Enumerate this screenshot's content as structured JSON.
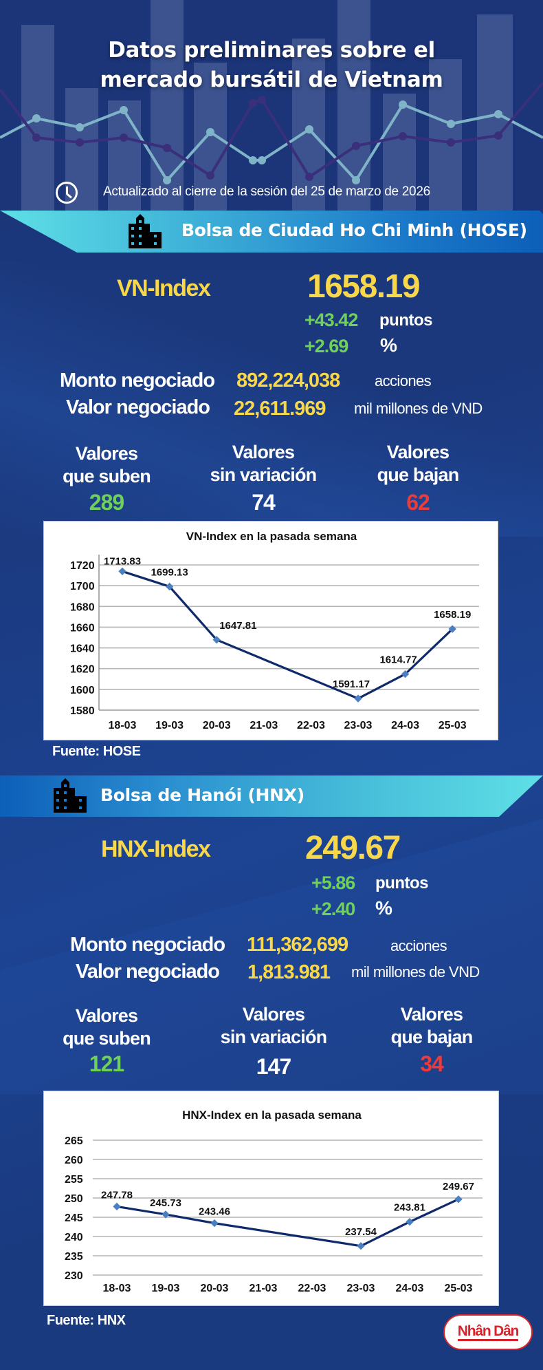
{
  "header": {
    "title_line1": "Datos preliminares sobre el",
    "title_line2": "mercado bursátil de Vietnam",
    "updated": "Actualizado al cierre de la sesión del 25 de marzo de 2026",
    "icon": "clock-icon"
  },
  "colors": {
    "background": "#1a3a7f",
    "index_yellow": "#f8d74a",
    "up_green": "#6fd05a",
    "down_red": "#ef3a3a",
    "banner_cyan": "#5ee0e6",
    "banner_blue": "#0d5fb8",
    "chart_line": "#0f2a6b",
    "chart_marker": "#4a7fc1"
  },
  "hose": {
    "banner_title": "Bolsa de Ciudad Ho Chi Minh (HOSE)",
    "banner_icon": "building-icon",
    "index_name": "VN-Index",
    "index_value": "1658.19",
    "change_points": "+43.42",
    "points_unit": "puntos",
    "change_percent": "+2.69",
    "percent_unit": "%",
    "volume_label": "Monto negociado",
    "volume_value": "892,224,038",
    "volume_unit": "acciones",
    "value_label": "Valor negociado",
    "value_value": "22,611.969",
    "value_unit": "mil millones de VND",
    "advancers_label_1": "Valores",
    "advancers_label_2": "que suben",
    "advancers": "289",
    "unchanged_label_1": "Valores",
    "unchanged_label_2": "sin variación",
    "unchanged": "74",
    "decliners_label_1": "Valores",
    "decliners_label_2": "que bajan",
    "decliners": "62",
    "source": "Fuente: HOSE"
  },
  "hnx": {
    "banner_title": "Bolsa de Hanói (HNX)",
    "banner_icon": "building-icon",
    "index_name": "HNX-Index",
    "index_value": "249.67",
    "change_points": "+5.86",
    "points_unit": "puntos",
    "change_percent": "+2.40",
    "percent_unit": "%",
    "volume_label": "Monto negociado",
    "volume_value": "111,362,699",
    "volume_unit": "acciones",
    "value_label": "Valor negociado",
    "value_value": "1,813.981",
    "value_unit": "mil millones de VND",
    "advancers_label_1": "Valores",
    "advancers_label_2": "que suben",
    "advancers": "121",
    "unchanged_label_1": "Valores",
    "unchanged_label_2": "sin variación",
    "unchanged": "147",
    "decliners_label_1": "Valores",
    "decliners_label_2": "que bajan",
    "decliners": "34",
    "source": "Fuente:  HNX"
  },
  "logo": {
    "text": "Nhân Dân"
  },
  "chart_data": [
    {
      "type": "line",
      "title": "VN-Index en la pasada semana",
      "xlabel": "",
      "ylabel": "",
      "categories": [
        "18-03",
        "19-03",
        "20-03",
        "21-03",
        "22-03",
        "23-03",
        "24-03",
        "25-03"
      ],
      "series": [
        {
          "name": "VN-Index",
          "values": [
            1713.83,
            1699.13,
            1647.81,
            null,
            null,
            1591.17,
            1614.77,
            1658.19
          ],
          "labels": [
            "1713.83",
            "1699.13",
            "1647.81",
            "",
            "",
            "1591.17",
            "1614.77",
            "1658.19"
          ]
        }
      ],
      "yticks": [
        1580,
        1600,
        1620,
        1640,
        1660,
        1680,
        1700,
        1720
      ],
      "ylim": [
        1580,
        1720
      ],
      "grid": true,
      "legend": "none",
      "connect_gaps": true
    },
    {
      "type": "line",
      "title": "HNX-Index en la pasada semana",
      "xlabel": "",
      "ylabel": "",
      "categories": [
        "18-03",
        "19-03",
        "20-03",
        "21-03",
        "22-03",
        "23-03",
        "24-03",
        "25-03"
      ],
      "series": [
        {
          "name": "HNX-Index",
          "values": [
            247.78,
            245.73,
            243.46,
            null,
            null,
            237.54,
            243.81,
            249.67
          ],
          "labels": [
            "247.78",
            "245.73",
            "243.46",
            "",
            "",
            "237.54",
            "243.81",
            "249.67"
          ]
        }
      ],
      "yticks": [
        230,
        235,
        240,
        245,
        250,
        255,
        260,
        265
      ],
      "ylim": [
        230,
        265
      ],
      "grid": true,
      "legend": "none",
      "connect_gaps": true
    }
  ]
}
